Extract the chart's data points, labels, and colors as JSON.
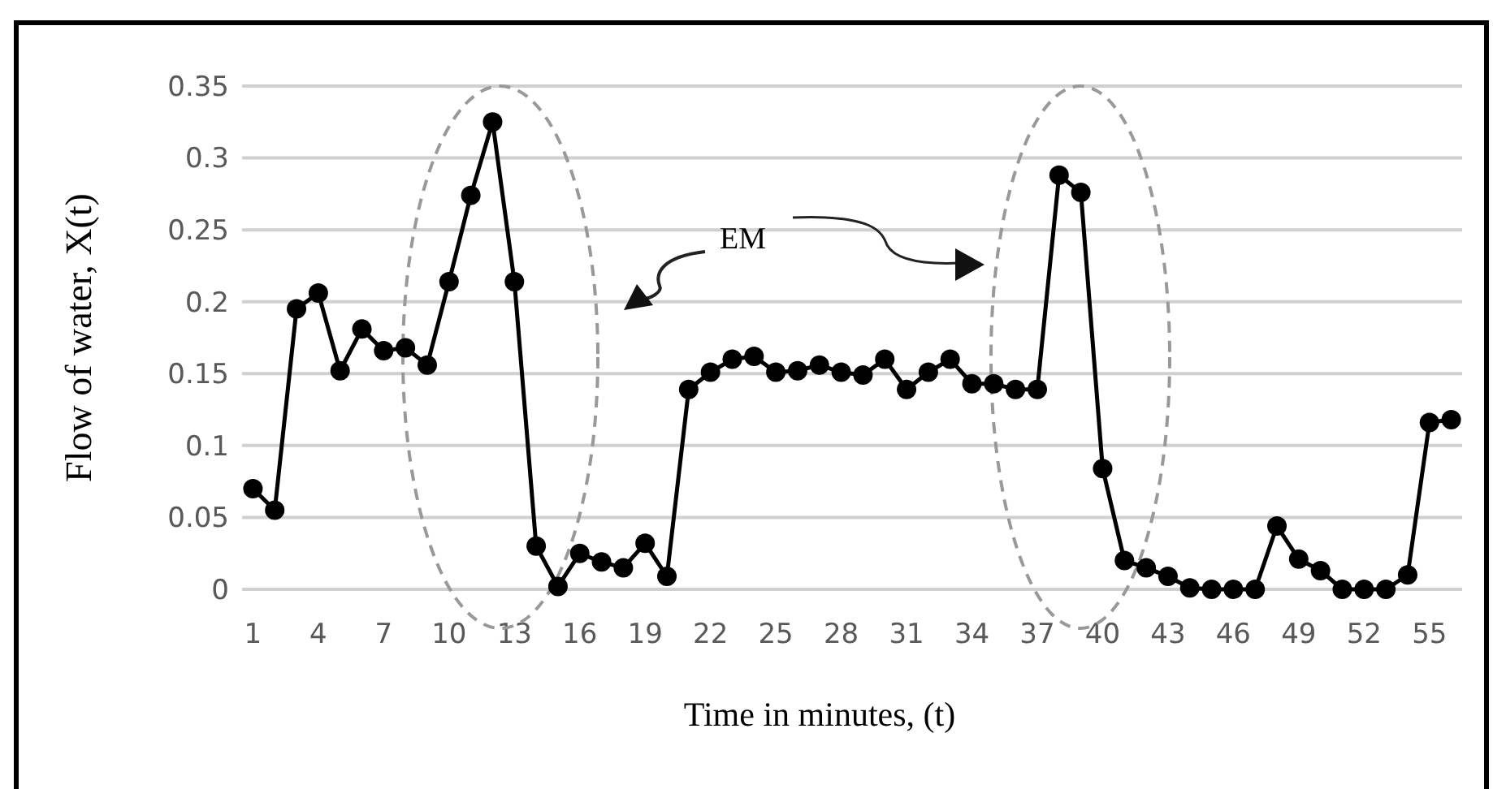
{
  "chart_data": {
    "type": "line",
    "xlabel": "Time in minutes, (t)",
    "ylabel": "Flow of water, X(t)",
    "annotations": [
      "EM"
    ],
    "categories": [
      "1",
      null,
      null,
      "4",
      null,
      null,
      "7",
      null,
      null,
      "10",
      null,
      null,
      "13",
      null,
      null,
      "16",
      null,
      null,
      "19",
      null,
      null,
      "22",
      null,
      null,
      "25",
      null,
      null,
      "28",
      null,
      null,
      "31",
      null,
      null,
      "34",
      null,
      null,
      "37",
      null,
      null,
      "40",
      null,
      null,
      "43",
      null,
      null,
      "46",
      null,
      null,
      "49",
      null,
      null,
      "52",
      null,
      null,
      "55",
      null
    ],
    "series": [
      {
        "color": "#000000",
        "values": [
          0.07,
          0.055,
          0.195,
          0.206,
          0.152,
          0.181,
          0.166,
          0.168,
          0.156,
          0.214,
          0.274,
          0.325,
          0.214,
          0.03,
          0.002,
          0.025,
          0.019,
          0.015,
          0.032,
          0.009,
          0.139,
          0.151,
          0.16,
          0.162,
          0.151,
          0.152,
          0.156,
          0.151,
          0.149,
          0.16,
          0.139,
          0.151,
          0.16,
          0.143,
          0.143,
          0.139,
          0.139,
          0.288,
          0.276,
          0.084,
          0.02,
          0.015,
          0.009,
          0.001,
          0,
          0,
          0,
          0.044,
          0.021,
          0.013,
          0,
          0,
          0,
          0.01,
          0.116,
          0.118
        ]
      }
    ],
    "ylim": [
      0,
      0.35
    ],
    "yticks": [
      {
        "value": 0,
        "label": "0"
      },
      0.05,
      0.1,
      0.15,
      0.2,
      0.25,
      0.3,
      0.35
    ],
    "grid": "y",
    "marker": "circle",
    "line_style": "solid"
  }
}
